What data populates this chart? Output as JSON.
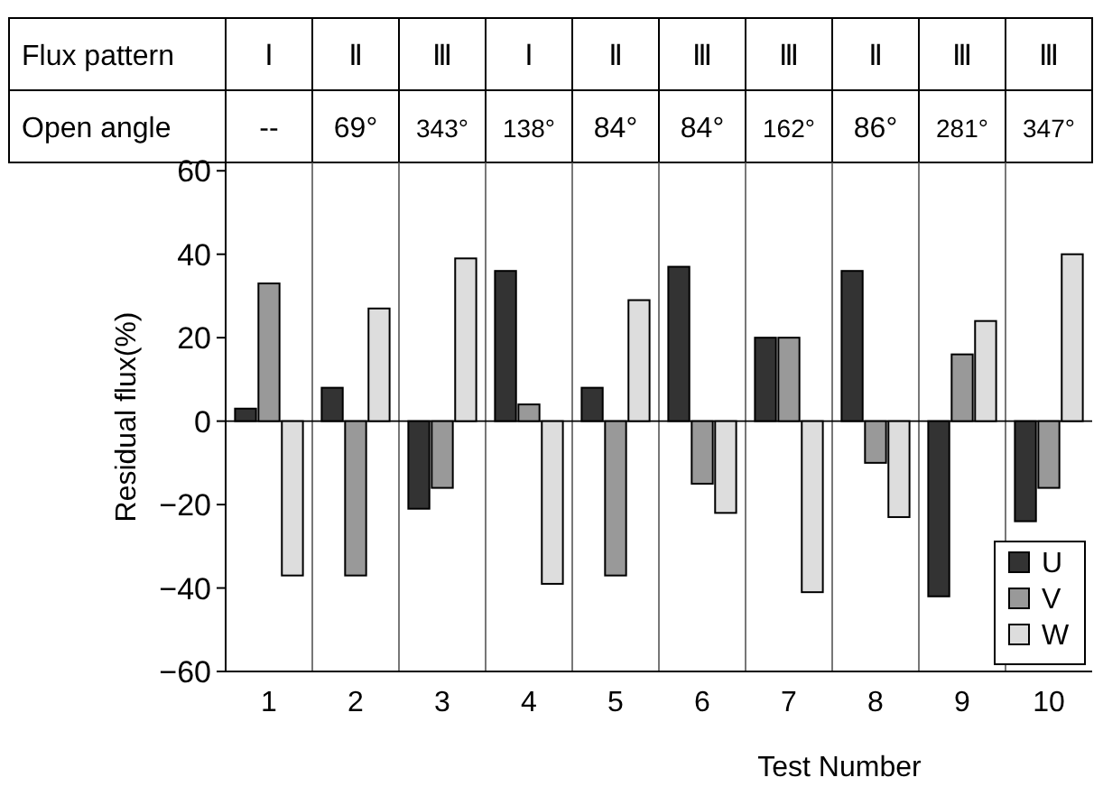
{
  "chart_data": {
    "type": "bar",
    "xlabel": "Test Number",
    "ylabel": "Residual flux(%)",
    "categories": [
      "1",
      "2",
      "3",
      "4",
      "5",
      "6",
      "7",
      "8",
      "9",
      "10"
    ],
    "series": [
      {
        "name": "U",
        "color": "#333333",
        "values": [
          3,
          8,
          -21,
          36,
          8,
          37,
          20,
          36,
          -42,
          -24
        ]
      },
      {
        "name": "V",
        "color": "#999999",
        "values": [
          33,
          -37,
          -16,
          4,
          -37,
          -15,
          20,
          -10,
          16,
          -16
        ]
      },
      {
        "name": "W",
        "color": "#dddddd",
        "values": [
          -37,
          27,
          39,
          -39,
          29,
          -22,
          -41,
          -23,
          24,
          40
        ]
      }
    ],
    "ylim": [
      -60,
      62
    ],
    "yticks": [
      60,
      40,
      20,
      0,
      {
        "value": -20,
        "label": "−20"
      },
      {
        "value": -40,
        "label": "−40"
      },
      {
        "value": -60,
        "label": "−60"
      }
    ],
    "grid": "x",
    "legend": "bottom right",
    "annotations": [
      "Flux pattern",
      "Ⅰ",
      "Ⅱ",
      "Ⅲ",
      "Ⅰ",
      "Ⅱ",
      "Ⅲ",
      "Ⅲ",
      "Ⅱ",
      "Ⅲ",
      "Ⅲ",
      "Open angle",
      "--",
      "69°",
      "343°",
      "138°",
      "84°",
      "84°",
      "162°",
      "86°",
      "281°",
      "347°"
    ]
  }
}
